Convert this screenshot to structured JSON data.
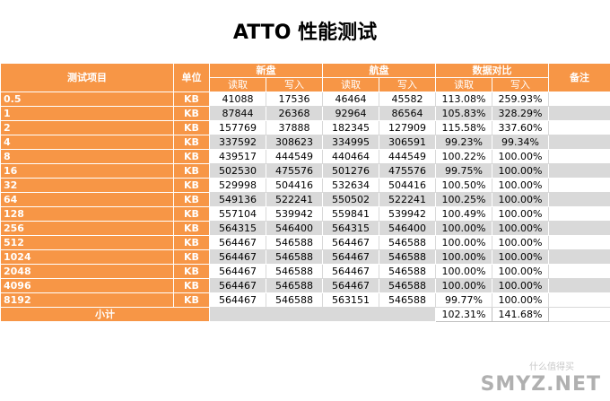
{
  "title": "ATTO 性能测试",
  "headers": {
    "item": "测试项目",
    "unit": "单位",
    "new_disk": "新盘",
    "flagship_disk": "航盘",
    "compare": "数据对比",
    "note": "备注",
    "read": "读取",
    "write": "写入"
  },
  "rows": [
    {
      "item": "0.5",
      "unit": "KB",
      "new_read": "41088",
      "new_write": "17536",
      "fl_read": "46464",
      "fl_write": "45582",
      "cmp_read": "113.08%",
      "cmp_write": "259.93%"
    },
    {
      "item": "1",
      "unit": "KB",
      "new_read": "87844",
      "new_write": "26368",
      "fl_read": "92964",
      "fl_write": "86564",
      "cmp_read": "105.83%",
      "cmp_write": "328.29%"
    },
    {
      "item": "2",
      "unit": "KB",
      "new_read": "157769",
      "new_write": "37888",
      "fl_read": "182345",
      "fl_write": "127909",
      "cmp_read": "115.58%",
      "cmp_write": "337.60%"
    },
    {
      "item": "4",
      "unit": "KB",
      "new_read": "337592",
      "new_write": "308623",
      "fl_read": "334995",
      "fl_write": "306591",
      "cmp_read": "99.23%",
      "cmp_write": "99.34%"
    },
    {
      "item": "8",
      "unit": "KB",
      "new_read": "439517",
      "new_write": "444549",
      "fl_read": "440464",
      "fl_write": "444549",
      "cmp_read": "100.22%",
      "cmp_write": "100.00%"
    },
    {
      "item": "16",
      "unit": "KB",
      "new_read": "502530",
      "new_write": "475576",
      "fl_read": "501276",
      "fl_write": "475576",
      "cmp_read": "99.75%",
      "cmp_write": "100.00%"
    },
    {
      "item": "32",
      "unit": "KB",
      "new_read": "529998",
      "new_write": "504416",
      "fl_read": "532634",
      "fl_write": "504416",
      "cmp_read": "100.50%",
      "cmp_write": "100.00%"
    },
    {
      "item": "64",
      "unit": "KB",
      "new_read": "549136",
      "new_write": "522241",
      "fl_read": "550502",
      "fl_write": "522241",
      "cmp_read": "100.25%",
      "cmp_write": "100.00%"
    },
    {
      "item": "128",
      "unit": "KB",
      "new_read": "557104",
      "new_write": "539942",
      "fl_read": "559841",
      "fl_write": "539942",
      "cmp_read": "100.49%",
      "cmp_write": "100.00%"
    },
    {
      "item": "256",
      "unit": "KB",
      "new_read": "564315",
      "new_write": "546400",
      "fl_read": "564315",
      "fl_write": "546400",
      "cmp_read": "100.00%",
      "cmp_write": "100.00%"
    },
    {
      "item": "512",
      "unit": "KB",
      "new_read": "564467",
      "new_write": "546588",
      "fl_read": "564467",
      "fl_write": "546588",
      "cmp_read": "100.00%",
      "cmp_write": "100.00%"
    },
    {
      "item": "1024",
      "unit": "KB",
      "new_read": "564467",
      "new_write": "546588",
      "fl_read": "564467",
      "fl_write": "546588",
      "cmp_read": "100.00%",
      "cmp_write": "100.00%"
    },
    {
      "item": "2048",
      "unit": "KB",
      "new_read": "564467",
      "new_write": "546588",
      "fl_read": "564467",
      "fl_write": "546588",
      "cmp_read": "100.00%",
      "cmp_write": "100.00%"
    },
    {
      "item": "4096",
      "unit": "KB",
      "new_read": "564467",
      "new_write": "546588",
      "fl_read": "564467",
      "fl_write": "546588",
      "cmp_read": "100.00%",
      "cmp_write": "100.00%"
    },
    {
      "item": "8192",
      "unit": "KB",
      "new_read": "564467",
      "new_write": "546588",
      "fl_read": "563151",
      "fl_write": "546588",
      "cmp_read": "99.77%",
      "cmp_write": "100.00%"
    }
  ],
  "summary": {
    "label": "小计",
    "cmp_read": "102.31%",
    "cmp_write": "141.68%"
  },
  "watermark": "SMYZ.NET",
  "watermark_hint": "什么值得买"
}
